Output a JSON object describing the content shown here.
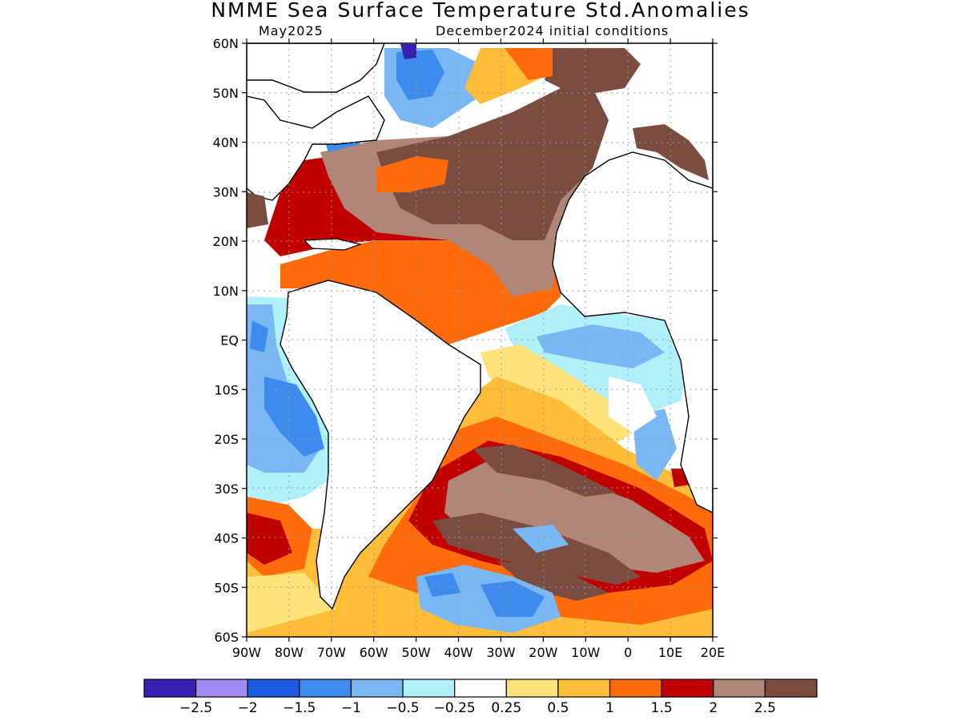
{
  "header": {
    "title": "NMME Sea Surface Temperature Std.Anomalies",
    "valid_month": "May2025",
    "init": "December2024 initial conditions"
  },
  "map": {
    "lat_labels": [
      "60N",
      "50N",
      "40N",
      "30N",
      "20N",
      "10N",
      "EQ",
      "10S",
      "20S",
      "30S",
      "40S",
      "50S",
      "60S"
    ],
    "lon_labels": [
      "90W",
      "80W",
      "70W",
      "60W",
      "50W",
      "40W",
      "30W",
      "20W",
      "10W",
      "0",
      "10E",
      "20E"
    ],
    "lat_range": [
      -60,
      60
    ],
    "lon_range": [
      -90,
      20
    ],
    "grid": "dotted"
  },
  "colorbar": {
    "colors": [
      "#3a1fb5",
      "#a08bf2",
      "#1c5ce0",
      "#3d8bed",
      "#7ab8f5",
      "#b0f0fa",
      "#ffffff",
      "#ffe37a",
      "#ffbd3a",
      "#ff6a0a",
      "#c10000",
      "#b08676",
      "#7b4d40"
    ],
    "labels": [
      "-2.5",
      "-2",
      "-1.5",
      "-1",
      "-0.5",
      "-0.25",
      "0.25",
      "0.5",
      "1",
      "1.5",
      "2",
      "2.5"
    ]
  }
}
